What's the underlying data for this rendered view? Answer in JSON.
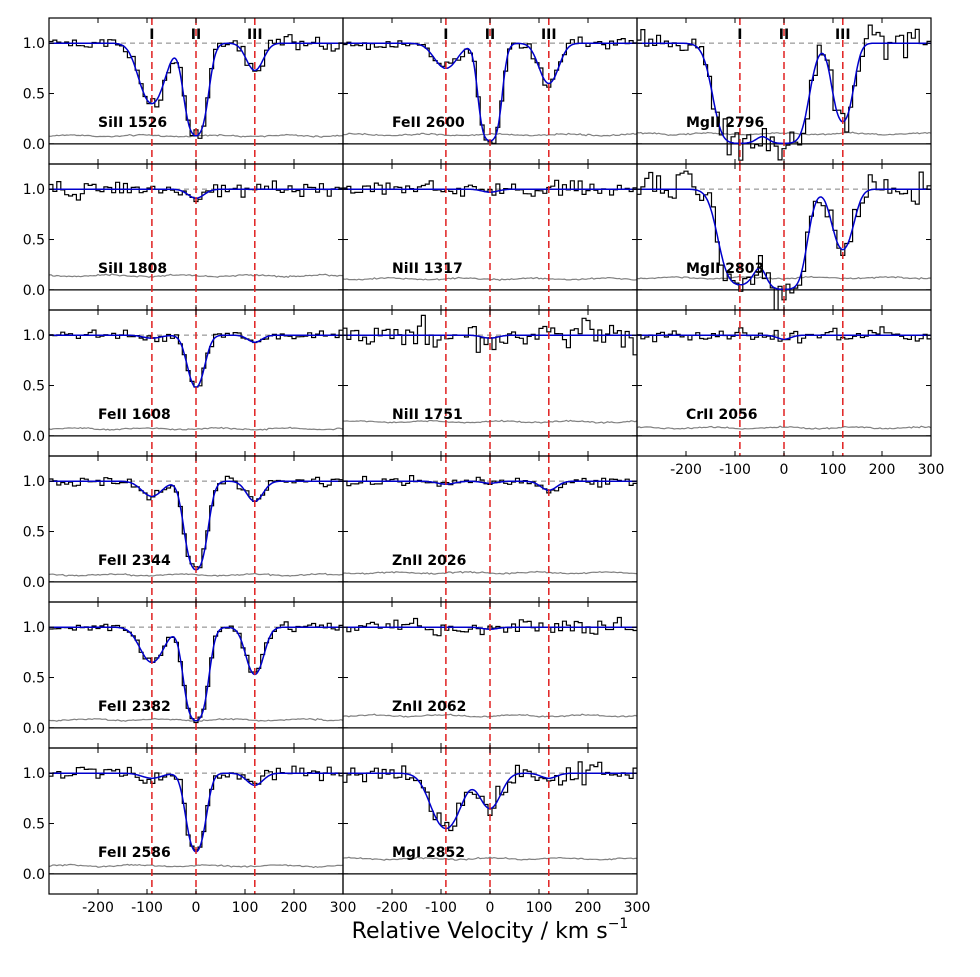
{
  "chart_data": {
    "type": "line",
    "xlabel": "Relative Velocity / km s",
    "xlabel_superscript": "−1",
    "xlim": [
      -300,
      300
    ],
    "ylim": [
      -0.2,
      1.25
    ],
    "x_ticks": [
      -200,
      -100,
      0,
      100,
      200,
      300
    ],
    "y_ticks": [
      0.0,
      0.5,
      1.0
    ],
    "y_tick_labels": [
      "0.0",
      "0.5",
      "1.0"
    ],
    "component_velocities": [
      -90,
      0,
      120
    ],
    "component_labels": [
      "I",
      "II",
      "III"
    ],
    "continuum_level": 1.0,
    "colors": {
      "data": "#000000",
      "fit": "#0000cc",
      "error": "#808080",
      "marker": "#e02020",
      "continuum": "#808080"
    },
    "panels": [
      {
        "label": "SiII 1526",
        "col": 0,
        "row": 0,
        "show_components": true,
        "noise": 0.07,
        "error": 0.08,
        "lines": [
          {
            "v": -90,
            "d": 0.6,
            "w": 22
          },
          {
            "v": 0,
            "d": 0.92,
            "w": 16
          },
          {
            "v": 120,
            "d": 0.27,
            "w": 16
          }
        ]
      },
      {
        "label": "FeII 2600",
        "col": 1,
        "row": 0,
        "show_components": true,
        "noise": 0.05,
        "error": 0.09,
        "lines": [
          {
            "v": -90,
            "d": 0.25,
            "w": 22
          },
          {
            "v": 0,
            "d": 0.97,
            "w": 14
          },
          {
            "v": 120,
            "d": 0.4,
            "w": 18
          }
        ]
      },
      {
        "label": "MgII 2796",
        "col": 2,
        "row": 0,
        "show_components": true,
        "noise": 0.15,
        "error": 0.1,
        "lines": [
          {
            "v": -90,
            "d": 1.0,
            "w": 28
          },
          {
            "v": 0,
            "d": 1.0,
            "w": 26
          },
          {
            "v": 120,
            "d": 0.78,
            "w": 16
          }
        ]
      },
      {
        "label": "SiII 1808",
        "col": 0,
        "row": 1,
        "show_components": false,
        "noise": 0.07,
        "error": 0.14,
        "lines": [
          {
            "v": 0,
            "d": 0.09,
            "w": 16
          }
        ]
      },
      {
        "label": "NiII 1317",
        "col": 1,
        "row": 1,
        "show_components": false,
        "noise": 0.07,
        "error": 0.11,
        "lines": [
          {
            "v": 0,
            "d": 0.03,
            "w": 16
          }
        ]
      },
      {
        "label": "MgII 2803",
        "col": 2,
        "row": 1,
        "show_components": false,
        "noise": 0.15,
        "error": 0.12,
        "lines": [
          {
            "v": -90,
            "d": 0.95,
            "w": 26
          },
          {
            "v": 0,
            "d": 1.0,
            "w": 24
          },
          {
            "v": 120,
            "d": 0.6,
            "w": 18
          }
        ]
      },
      {
        "label": "FeII 1608",
        "col": 0,
        "row": 2,
        "show_components": false,
        "noise": 0.04,
        "error": 0.07,
        "lines": [
          {
            "v": -90,
            "d": 0.03,
            "w": 18
          },
          {
            "v": 0,
            "d": 0.52,
            "w": 15
          },
          {
            "v": 120,
            "d": 0.07,
            "w": 14
          }
        ]
      },
      {
        "label": "NiII 1751",
        "col": 1,
        "row": 2,
        "show_components": false,
        "noise": 0.12,
        "error": 0.14,
        "lines": [
          {
            "v": 0,
            "d": 0.03,
            "w": 16
          }
        ]
      },
      {
        "label": "CrII 2056",
        "col": 2,
        "row": 2,
        "show_components": false,
        "noise": 0.06,
        "error": 0.08,
        "lines": [
          {
            "v": 0,
            "d": 0.04,
            "w": 14
          }
        ]
      },
      {
        "label": "FeII 2344",
        "col": 0,
        "row": 3,
        "show_components": false,
        "noise": 0.04,
        "error": 0.07,
        "lines": [
          {
            "v": -90,
            "d": 0.15,
            "w": 20
          },
          {
            "v": 0,
            "d": 0.88,
            "w": 16
          },
          {
            "v": 120,
            "d": 0.2,
            "w": 16
          }
        ]
      },
      {
        "label": "ZnII 2026",
        "col": 1,
        "row": 3,
        "show_components": false,
        "noise": 0.04,
        "error": 0.09,
        "lines": [
          {
            "v": -90,
            "d": 0.03,
            "w": 18
          },
          {
            "v": 0,
            "d": 0.02,
            "w": 16
          },
          {
            "v": 120,
            "d": 0.09,
            "w": 16
          }
        ]
      },
      {
        "label": "FeII 2382",
        "col": 0,
        "row": 4,
        "show_components": false,
        "noise": 0.04,
        "error": 0.08,
        "lines": [
          {
            "v": -90,
            "d": 0.35,
            "w": 22
          },
          {
            "v": 0,
            "d": 0.93,
            "w": 16
          },
          {
            "v": 120,
            "d": 0.47,
            "w": 16
          }
        ]
      },
      {
        "label": "ZnII 2062",
        "col": 1,
        "row": 4,
        "show_components": false,
        "noise": 0.07,
        "error": 0.12,
        "lines": [
          {
            "v": 0,
            "d": 0.02,
            "w": 16
          }
        ]
      },
      {
        "label": "FeII 2586",
        "col": 0,
        "row": 5,
        "show_components": false,
        "noise": 0.06,
        "error": 0.08,
        "lines": [
          {
            "v": -90,
            "d": 0.05,
            "w": 20
          },
          {
            "v": 0,
            "d": 0.78,
            "w": 15
          },
          {
            "v": 120,
            "d": 0.12,
            "w": 16
          }
        ]
      },
      {
        "label": "MgI 2852",
        "col": 1,
        "row": 5,
        "show_components": false,
        "noise": 0.09,
        "error": 0.15,
        "lines": [
          {
            "v": -90,
            "d": 0.55,
            "w": 26
          },
          {
            "v": 0,
            "d": 0.35,
            "w": 20
          },
          {
            "v": 120,
            "d": 0.05,
            "w": 16
          }
        ]
      }
    ]
  }
}
